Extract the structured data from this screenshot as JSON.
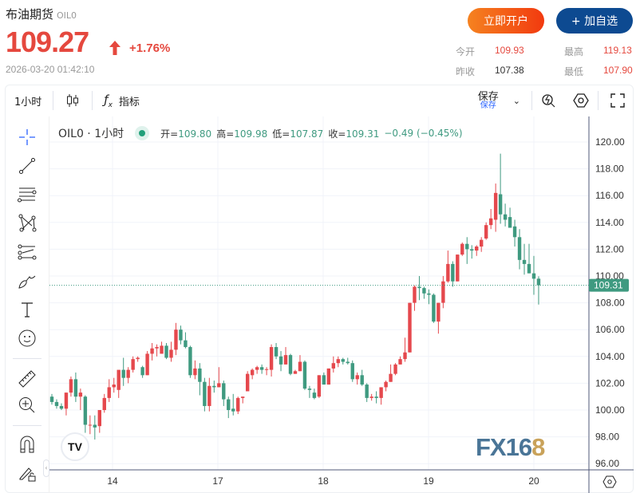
{
  "header": {
    "title": "布油期货",
    "code": "OIL0",
    "price": "109.27",
    "change_pct": "+1.76%",
    "timestamp": "2026-03-20 01:42:10",
    "open_account_label": "立即开户",
    "add_watch_label": "+ 加自选"
  },
  "stats": {
    "open_label": "今开",
    "open": "109.93",
    "high_label": "最高",
    "high": "119.13",
    "prev_close_label": "昨收",
    "prev_close": "107.38",
    "low_label": "最低",
    "low": "107.90"
  },
  "toolbar": {
    "interval": "1小时",
    "indicators_label": "指标",
    "save_label": "保存",
    "save_sub": "保存"
  },
  "legend": {
    "symbol": "OIL0 · 1小时",
    "open_label": "开=",
    "open": "109.80",
    "high_label": "高=",
    "high": "109.98",
    "low_label": "低=",
    "low": "107.87",
    "close_label": "收=",
    "close": "109.31",
    "change": "−0.49 (−0.45%)"
  },
  "watermark": "FX168",
  "colors": {
    "up": "#e5484d",
    "down": "#3f9a80",
    "accent": "#2962ff"
  },
  "chart_data": {
    "type": "candlestick",
    "ylim": [
      96,
      120
    ],
    "y_ticks": [
      "96.00",
      "98.00",
      "100.00",
      "102.00",
      "104.00",
      "106.00",
      "108.00",
      "110.00",
      "112.00",
      "114.00",
      "116.00",
      "118.00",
      "120.00"
    ],
    "x_ticks": [
      "14",
      "17",
      "18",
      "19",
      "20"
    ],
    "last_price_label": "109.31",
    "grid": true,
    "ohlc": [
      [
        101.0,
        101.2,
        100.4,
        100.6
      ],
      [
        100.6,
        100.8,
        100.1,
        100.3
      ],
      [
        100.3,
        100.5,
        100.0,
        100.1
      ],
      [
        100.1,
        101.3,
        99.6,
        101.3
      ],
      [
        101.3,
        102.5,
        101.0,
        102.3
      ],
      [
        102.3,
        102.8,
        100.6,
        101.0
      ],
      [
        101.0,
        101.6,
        100.0,
        101.3
      ],
      [
        101.0,
        101.1,
        98.3,
        98.9
      ],
      [
        98.9,
        99.6,
        98.2,
        98.9
      ],
      [
        98.9,
        99.6,
        97.8,
        98.7
      ],
      [
        98.8,
        100.0,
        98.3,
        100.0
      ],
      [
        100.0,
        101.2,
        99.8,
        100.9
      ],
      [
        100.9,
        102.3,
        100.6,
        101.7
      ],
      [
        101.7,
        102.4,
        101.3,
        101.9
      ],
      [
        101.5,
        102.9,
        100.9,
        103.0
      ],
      [
        103.0,
        103.9,
        101.8,
        102.4
      ],
      [
        102.4,
        103.2,
        102.0,
        103.0
      ],
      [
        103.0,
        104.0,
        102.8,
        103.8
      ],
      [
        103.8,
        104.0,
        103.6,
        103.9
      ],
      [
        103.2,
        103.3,
        102.4,
        102.6
      ],
      [
        102.6,
        104.4,
        102.6,
        104.2
      ],
      [
        104.2,
        105.0,
        103.7,
        104.6
      ],
      [
        104.6,
        104.9,
        104.0,
        104.7
      ],
      [
        104.2,
        105.1,
        104.2,
        104.8
      ],
      [
        104.8,
        105.0,
        103.8,
        103.9
      ],
      [
        103.9,
        105.1,
        103.6,
        104.5
      ],
      [
        104.5,
        106.5,
        104.1,
        106.0
      ],
      [
        106.0,
        106.3,
        104.9,
        105.2
      ],
      [
        105.2,
        105.8,
        104.6,
        104.7
      ],
      [
        104.7,
        104.8,
        102.4,
        102.6
      ],
      [
        102.6,
        103.7,
        102.3,
        103.1
      ],
      [
        103.1,
        103.5,
        101.1,
        102.1
      ],
      [
        102.1,
        102.4,
        99.9,
        100.3
      ],
      [
        100.3,
        102.4,
        99.9,
        101.8
      ],
      [
        101.8,
        102.2,
        101.3,
        101.7
      ],
      [
        101.7,
        103.2,
        101.7,
        102.0
      ],
      [
        102.0,
        102.2,
        100.3,
        100.8
      ],
      [
        100.8,
        101.0,
        99.4,
        100.0
      ],
      [
        100.1,
        101.2,
        99.6,
        99.9
      ],
      [
        99.9,
        101.0,
        99.7,
        100.9
      ],
      [
        100.9,
        101.0,
        100.5,
        101.0
      ],
      [
        101.4,
        102.9,
        101.4,
        102.7
      ],
      [
        102.6,
        103.1,
        102.3,
        103.0
      ],
      [
        103.0,
        103.3,
        102.7,
        103.2
      ],
      [
        103.2,
        103.4,
        102.7,
        103.0
      ],
      [
        103.0,
        103.2,
        102.6,
        103.05
      ],
      [
        103.0,
        104.9,
        102.5,
        104.7
      ],
      [
        104.7,
        105.0,
        103.8,
        104.0
      ],
      [
        104.0,
        104.4,
        102.9,
        103.4
      ],
      [
        103.4,
        104.7,
        103.4,
        104.1
      ],
      [
        104.1,
        104.2,
        102.6,
        102.7
      ],
      [
        102.7,
        103.0,
        102.7,
        102.9
      ],
      [
        102.9,
        104.1,
        102.9,
        103.6
      ],
      [
        103.6,
        103.7,
        101.5,
        101.6
      ],
      [
        101.6,
        101.8,
        100.9,
        101.5
      ],
      [
        101.3,
        101.6,
        100.8,
        100.9
      ],
      [
        101.0,
        102.6,
        100.9,
        102.6
      ],
      [
        102.6,
        102.8,
        101.9,
        101.9
      ],
      [
        101.9,
        103.1,
        101.9,
        103.1
      ],
      [
        103.1,
        104.0,
        102.8,
        103.5
      ],
      [
        103.5,
        104.0,
        103.2,
        103.8
      ],
      [
        103.8,
        103.9,
        103.4,
        103.6
      ],
      [
        103.6,
        103.9,
        103.4,
        103.5
      ],
      [
        103.5,
        103.7,
        102.1,
        102.3
      ],
      [
        102.3,
        102.8,
        101.9,
        102.6
      ],
      [
        102.6,
        103.0,
        101.8,
        101.9
      ],
      [
        101.9,
        102.0,
        100.6,
        100.9
      ],
      [
        100.9,
        101.2,
        100.7,
        101.0
      ],
      [
        101.0,
        101.4,
        100.5,
        100.9
      ],
      [
        100.9,
        101.7,
        100.4,
        101.7
      ],
      [
        101.7,
        102.2,
        101.4,
        102.1
      ],
      [
        102.1,
        103.4,
        102.1,
        102.7
      ],
      [
        102.7,
        103.5,
        102.6,
        103.4
      ],
      [
        103.4,
        104.0,
        103.4,
        103.8
      ],
      [
        103.8,
        105.4,
        103.6,
        104.3
      ],
      [
        104.3,
        108.0,
        104.3,
        108.0
      ],
      [
        108.0,
        109.3,
        107.4,
        109.2
      ],
      [
        109.2,
        110.0,
        108.2,
        109.1
      ],
      [
        109.1,
        109.2,
        108.3,
        108.7
      ],
      [
        108.7,
        109.0,
        107.9,
        108.6
      ],
      [
        108.6,
        108.7,
        106.5,
        106.6
      ],
      [
        106.6,
        108.0,
        105.7,
        108.0
      ],
      [
        108.0,
        110.0,
        107.6,
        109.6
      ],
      [
        109.6,
        111.9,
        109.5,
        110.9
      ],
      [
        110.9,
        111.1,
        109.2,
        109.6
      ],
      [
        109.6,
        111.6,
        109.6,
        111.6
      ],
      [
        111.6,
        112.5,
        111.5,
        112.4
      ],
      [
        112.4,
        112.9,
        110.9,
        112.0
      ],
      [
        112.0,
        112.3,
        111.3,
        111.9
      ],
      [
        111.9,
        112.3,
        111.5,
        112.2
      ],
      [
        112.2,
        112.9,
        111.8,
        112.7
      ],
      [
        112.8,
        114.0,
        112.7,
        113.8
      ],
      [
        113.8,
        115.0,
        113.5,
        114.3
      ],
      [
        114.2,
        116.9,
        113.3,
        116.2
      ],
      [
        116.1,
        119.13,
        113.9,
        114.6
      ],
      [
        114.6,
        115.4,
        113.7,
        114.2
      ],
      [
        114.4,
        115.1,
        113.7,
        113.6
      ],
      [
        113.7,
        114.2,
        112.2,
        112.9
      ],
      [
        112.9,
        113.5,
        110.5,
        111.2
      ],
      [
        111.2,
        112.4,
        110.1,
        110.9
      ],
      [
        110.9,
        112.4,
        110.2,
        110.2
      ],
      [
        110.2,
        111.5,
        108.6,
        109.8
      ],
      [
        109.8,
        109.98,
        107.87,
        109.31
      ]
    ]
  }
}
